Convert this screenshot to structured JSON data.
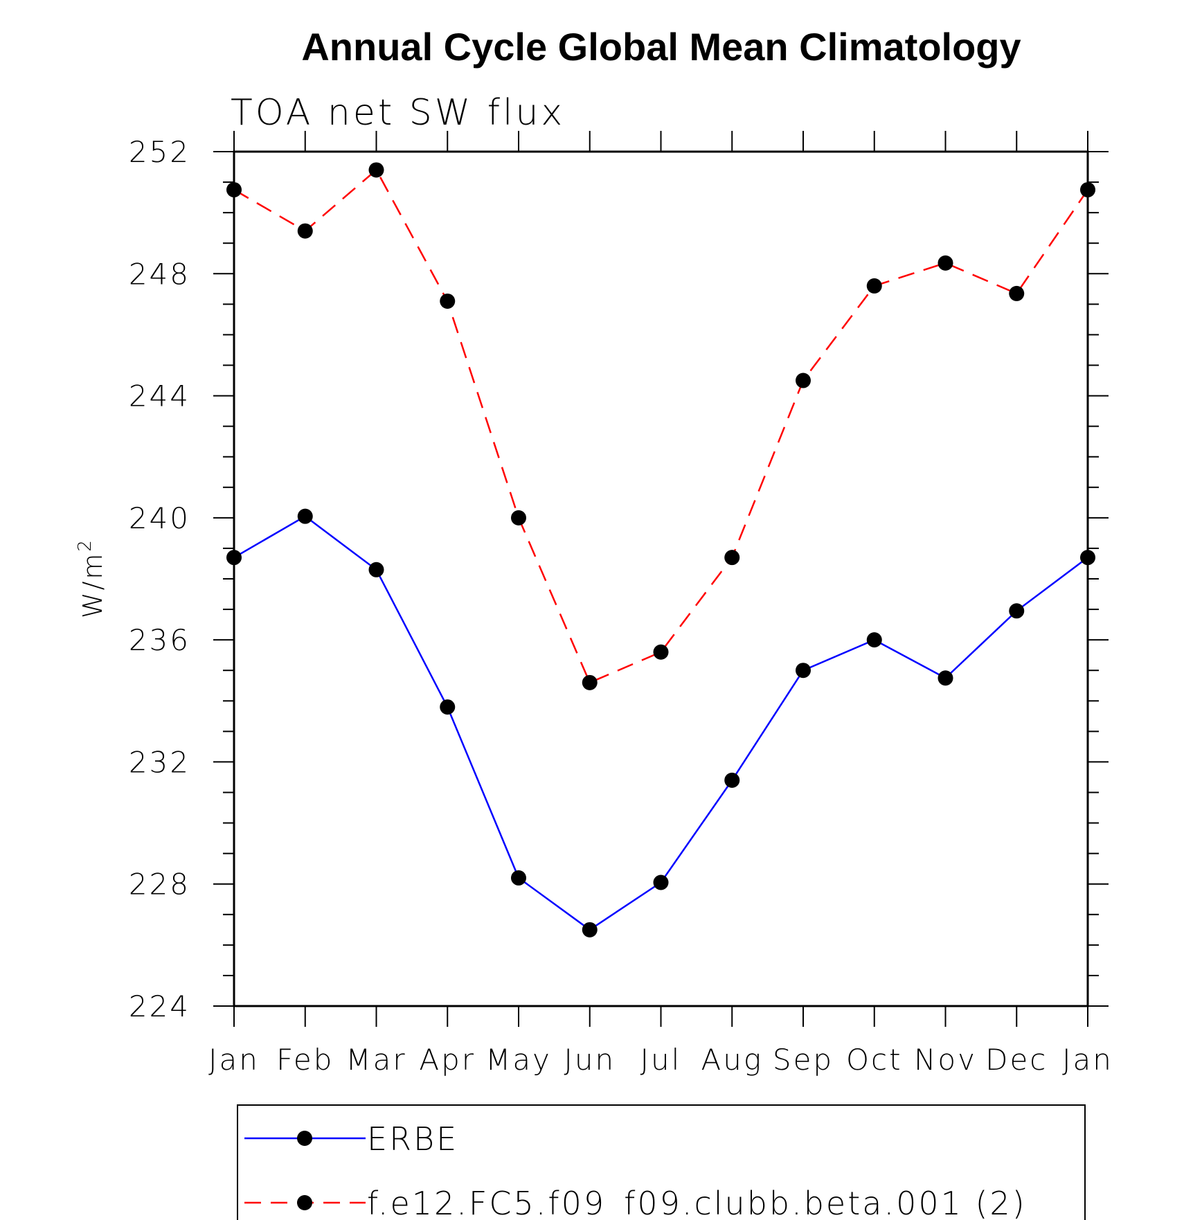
{
  "chart_data": {
    "type": "line",
    "title": "Annual Cycle Global Mean Climatology",
    "subtitle": "TOA net SW flux",
    "ylabel": "W/m",
    "ylabel_superscript": "2",
    "xlabel": "",
    "categories": [
      "Jan",
      "Feb",
      "Mar",
      "Apr",
      "May",
      "Jun",
      "Jul",
      "Aug",
      "Sep",
      "Oct",
      "Nov",
      "Dec",
      "Jan"
    ],
    "ylim": [
      224,
      252
    ],
    "yticks": [
      224,
      228,
      232,
      236,
      240,
      244,
      248,
      252
    ],
    "ytick_labels": [
      "224",
      "228",
      "232",
      "236",
      "240",
      "244",
      "248",
      "252"
    ],
    "grid": false,
    "legend_placement": "bottom",
    "series": [
      {
        "name": "ERBE",
        "color": "#0000ff",
        "line_style": "solid",
        "marker": "filled-circle",
        "values": [
          238.7,
          240.05,
          238.3,
          233.8,
          228.2,
          226.5,
          228.05,
          231.4,
          235.0,
          236.0,
          234.75,
          236.95,
          238.7
        ]
      },
      {
        "name": "f.e12.FC5.f09_f09.clubb.beta.001 (2)",
        "color": "#ff0000",
        "line_style": "dashed",
        "marker": "filled-circle",
        "values": [
          250.75,
          249.4,
          251.4,
          247.1,
          240.0,
          234.6,
          235.6,
          238.7,
          244.5,
          247.6,
          248.35,
          247.35,
          250.75
        ]
      }
    ]
  }
}
